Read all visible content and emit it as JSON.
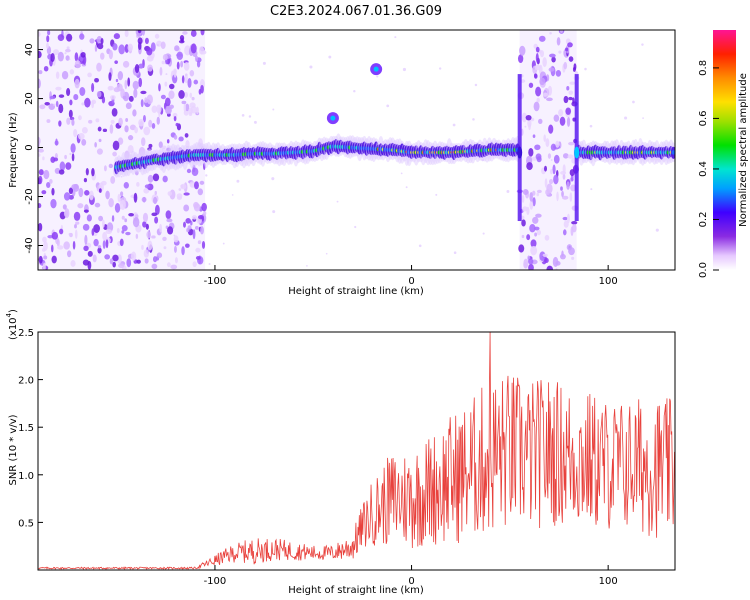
{
  "title": "C2E3.2024.067.01.36.G09",
  "chart_data": [
    {
      "type": "heatmap",
      "xlabel": "Height of straight line (km)",
      "ylabel": "Frequency (Hz)",
      "xlim": [
        -190,
        134
      ],
      "ylim": [
        -50,
        48
      ],
      "xticks": [
        {
          "v": -100,
          "label": "-100"
        },
        {
          "v": 0,
          "label": "0"
        },
        {
          "v": 100,
          "label": "100"
        }
      ],
      "yticks": [
        {
          "v": 40,
          "label": "40"
        },
        {
          "v": 20,
          "label": "20"
        },
        {
          "v": 0,
          "label": "0"
        },
        {
          "v": -20,
          "label": "-20"
        },
        {
          "v": -40,
          "label": "-40"
        }
      ],
      "noise_bands_km": [
        [
          -190,
          -105
        ],
        [
          55,
          84
        ]
      ],
      "signal_trace": {
        "x": [
          -150,
          -130,
          -110,
          -100,
          -90,
          -80,
          -70,
          -60,
          -50,
          -40,
          -30,
          -20,
          -10,
          0,
          10,
          20,
          30,
          40,
          50,
          55,
          84,
          90,
          100,
          110,
          120,
          134
        ],
        "y": [
          -8,
          -5,
          -3,
          -3,
          -3,
          -2.5,
          -2.5,
          -2,
          -1.5,
          0.5,
          0,
          -0.5,
          -1,
          -2,
          -2,
          -2,
          -1.5,
          -1,
          -1,
          -1,
          -2,
          -2,
          -2,
          -2,
          -2,
          -2
        ]
      },
      "features": [
        {
          "x": -40,
          "y": 12,
          "desc": "blob"
        },
        {
          "x": -18,
          "y": 32,
          "desc": "blob"
        }
      ],
      "colorbar": {
        "label": "Normalized spectral amplitude",
        "range": [
          0,
          0.95
        ],
        "ticks": [
          {
            "v": 0.0,
            "label": "0.0"
          },
          {
            "v": 0.2,
            "label": "0.2"
          },
          {
            "v": 0.4,
            "label": "0.4"
          },
          {
            "v": 0.6,
            "label": "0.6"
          },
          {
            "v": 0.8,
            "label": "0.8"
          }
        ]
      },
      "grid": false
    },
    {
      "type": "line",
      "xlabel": "Height of straight line (km)",
      "ylabel": "SNR (10 * v/v)",
      "multiplier_label": "(x10",
      "multiplier_exp": "4",
      "xlim": [
        -190,
        134
      ],
      "ylim": [
        0,
        2.5
      ],
      "xticks": [
        {
          "v": -100,
          "label": "-100"
        },
        {
          "v": 0,
          "label": "0"
        },
        {
          "v": 100,
          "label": "100"
        }
      ],
      "yticks": [
        {
          "v": 2.5,
          "label": "2.5"
        },
        {
          "v": 2.0,
          "label": "2.0"
        },
        {
          "v": 1.5,
          "label": "1.5"
        },
        {
          "v": 1.0,
          "label": "1.0"
        },
        {
          "v": 0.5,
          "label": "0.5"
        }
      ],
      "series_color": "#e8413c",
      "envelope": {
        "x": [
          -190,
          -110,
          -100,
          -90,
          -80,
          -70,
          -60,
          -50,
          -40,
          -30,
          -25,
          -20,
          -10,
          0,
          10,
          20,
          30,
          40,
          50,
          60,
          70,
          80,
          90,
          100,
          110,
          120,
          134
        ],
        "mean": [
          0.02,
          0.02,
          0.1,
          0.18,
          0.2,
          0.22,
          0.2,
          0.18,
          0.18,
          0.25,
          0.45,
          0.6,
          0.75,
          0.75,
          0.85,
          0.95,
          1.05,
          1.2,
          1.25,
          1.2,
          1.25,
          1.2,
          1.15,
          1.1,
          1.1,
          1.1,
          1.05
        ],
        "amp": [
          0.01,
          0.01,
          0.06,
          0.1,
          0.14,
          0.12,
          0.1,
          0.08,
          0.08,
          0.15,
          0.25,
          0.35,
          0.5,
          0.55,
          0.6,
          0.7,
          0.75,
          0.85,
          0.85,
          0.8,
          0.8,
          0.75,
          0.75,
          0.7,
          0.7,
          0.75,
          0.75
        ]
      },
      "peak": {
        "x": 40,
        "y": 2.5
      },
      "grid": false
    }
  ]
}
